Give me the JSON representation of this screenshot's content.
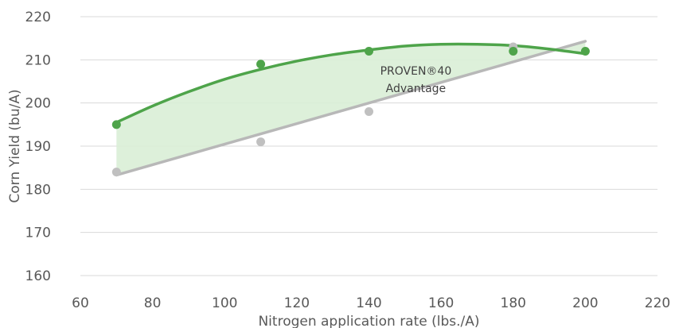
{
  "chart_data": {
    "type": "scatter",
    "title": "",
    "xlabel": "Nitrogen application rate (lbs./A)",
    "ylabel": "Corn Yield (bu/A)",
    "xlim": [
      60,
      220
    ],
    "ylim": [
      160,
      220
    ],
    "xticks": [
      60,
      80,
      100,
      120,
      140,
      160,
      180,
      200,
      220
    ],
    "yticks": [
      160,
      170,
      180,
      190,
      200,
      210,
      220
    ],
    "grid": "horizontal",
    "legend": "none",
    "series": [
      {
        "color": "#4ea44a",
        "trendline_color": "#4ea44a",
        "points": [
          {
            "x": 70,
            "y": 195
          },
          {
            "x": 110,
            "y": 209
          },
          {
            "x": 140,
            "y": 212
          },
          {
            "x": 180,
            "y": 212
          },
          {
            "x": 200,
            "y": 212
          }
        ],
        "trendline": [
          {
            "x": 70,
            "y": 195.5
          },
          {
            "x": 80,
            "y": 199.3
          },
          {
            "x": 90,
            "y": 202.6
          },
          {
            "x": 100,
            "y": 205.5
          },
          {
            "x": 110,
            "y": 207.8
          },
          {
            "x": 120,
            "y": 209.7
          },
          {
            "x": 130,
            "y": 211.2
          },
          {
            "x": 140,
            "y": 212.3
          },
          {
            "x": 150,
            "y": 213.2
          },
          {
            "x": 160,
            "y": 213.6
          },
          {
            "x": 170,
            "y": 213.6
          },
          {
            "x": 180,
            "y": 213.3
          },
          {
            "x": 190,
            "y": 212.5
          },
          {
            "x": 200,
            "y": 211.4
          }
        ]
      },
      {
        "color": "#c0c0c0",
        "trendline_color": "#b8b8b8",
        "points": [
          {
            "x": 70,
            "y": 184
          },
          {
            "x": 110,
            "y": 191
          },
          {
            "x": 140,
            "y": 198
          },
          {
            "x": 180,
            "y": 213
          }
        ],
        "trendline": [
          {
            "x": 70,
            "y": 183.3
          },
          {
            "x": 200,
            "y": 214.3
          }
        ]
      }
    ],
    "shaded_region": {
      "color": "#d9eed6",
      "between": [
        "series.0.trendline",
        "series.1.trendline"
      ],
      "annotation": {
        "lines": [
          "PROVEN®40",
          "Advantage"
        ],
        "x": 153,
        "y": 205.5
      }
    }
  }
}
